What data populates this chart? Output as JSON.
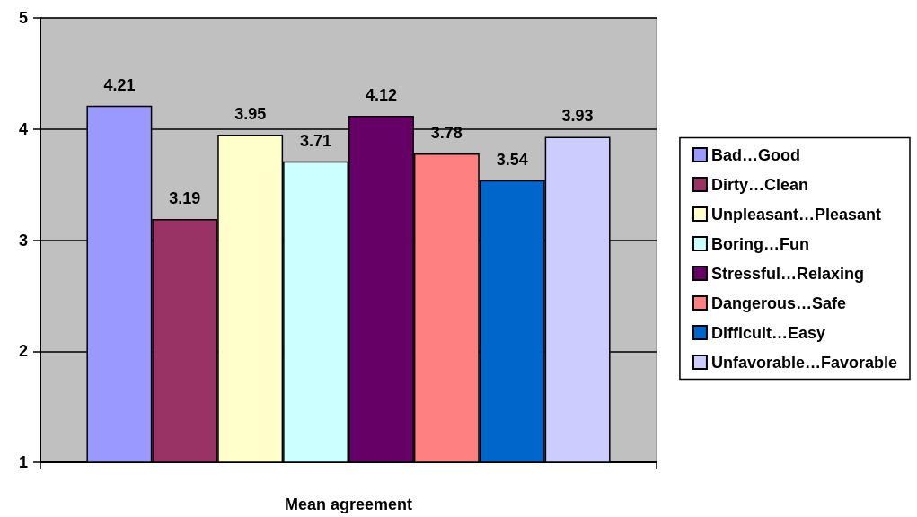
{
  "chart_data": {
    "type": "bar",
    "xlabel": "Mean agreement",
    "categories": [
      null
    ],
    "series": [
      {
        "name": "Bad…Good",
        "color": "#9999ff",
        "values": [
          4.21
        ]
      },
      {
        "name": "Dirty…Clean",
        "color": "#993366",
        "values": [
          3.19
        ]
      },
      {
        "name": "Unpleasant…Pleasant",
        "color": "#ffffcc",
        "values": [
          3.95
        ]
      },
      {
        "name": "Boring…Fun",
        "color": "#ccffff",
        "values": [
          3.71
        ]
      },
      {
        "name": "Stressful…Relaxing",
        "color": "#660066",
        "values": [
          4.12
        ]
      },
      {
        "name": "Dangerous…Safe",
        "color": "#ff8080",
        "values": [
          3.78
        ]
      },
      {
        "name": "Difficult…Easy",
        "color": "#0066cc",
        "values": [
          3.54
        ]
      },
      {
        "name": "Unfavorable…Favorable",
        "color": "#ccccff",
        "values": [
          3.93
        ]
      }
    ],
    "ylim": [
      1,
      5
    ],
    "yticks": [
      1,
      2,
      3,
      4,
      5
    ],
    "grid": "y",
    "legend": "right",
    "data_labels": true
  }
}
